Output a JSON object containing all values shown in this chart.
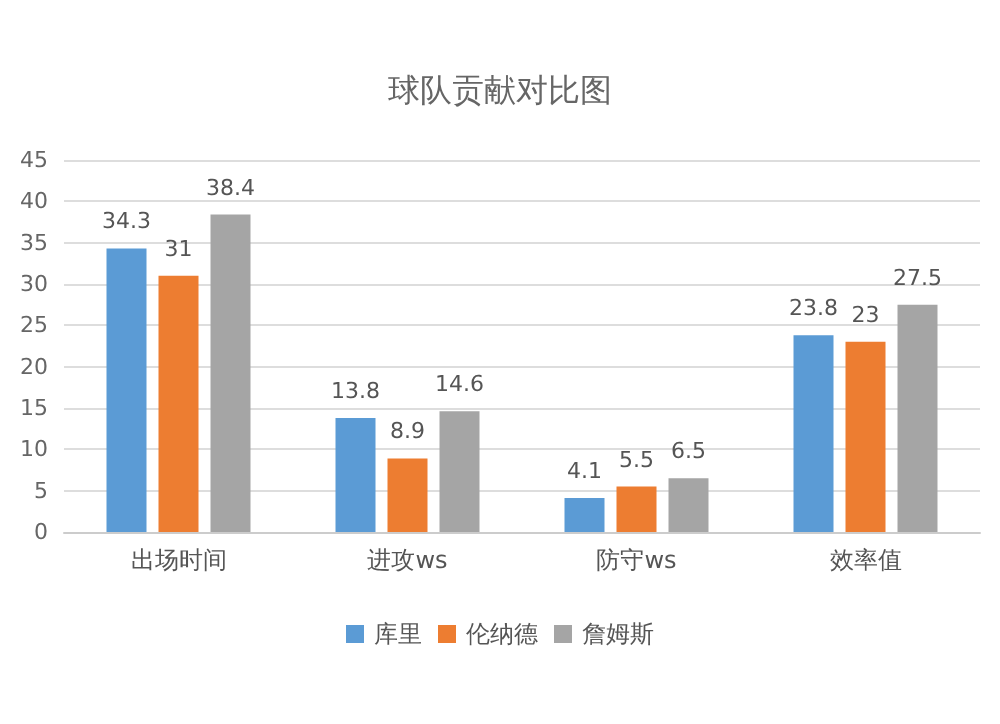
{
  "chart_data": {
    "type": "bar",
    "title": "球队贡献对比图",
    "categories": [
      "出场时间",
      "进攻ws",
      "防守ws",
      "效率值"
    ],
    "series": [
      {
        "name": "库里",
        "color": "#5b9bd5",
        "values": [
          34.3,
          13.8,
          4.1,
          23.8
        ]
      },
      {
        "name": "伦纳德",
        "color": "#ed7d31",
        "values": [
          31,
          8.9,
          5.5,
          23
        ]
      },
      {
        "name": "詹姆斯",
        "color": "#a5a5a5",
        "values": [
          38.4,
          14.6,
          6.5,
          27.5
        ]
      }
    ],
    "ylim": [
      0,
      45
    ],
    "yticks": [
      0,
      5,
      10,
      15,
      20,
      25,
      30,
      35,
      40,
      45
    ],
    "grid": "y",
    "legend": "bottom",
    "data_labels": true
  }
}
